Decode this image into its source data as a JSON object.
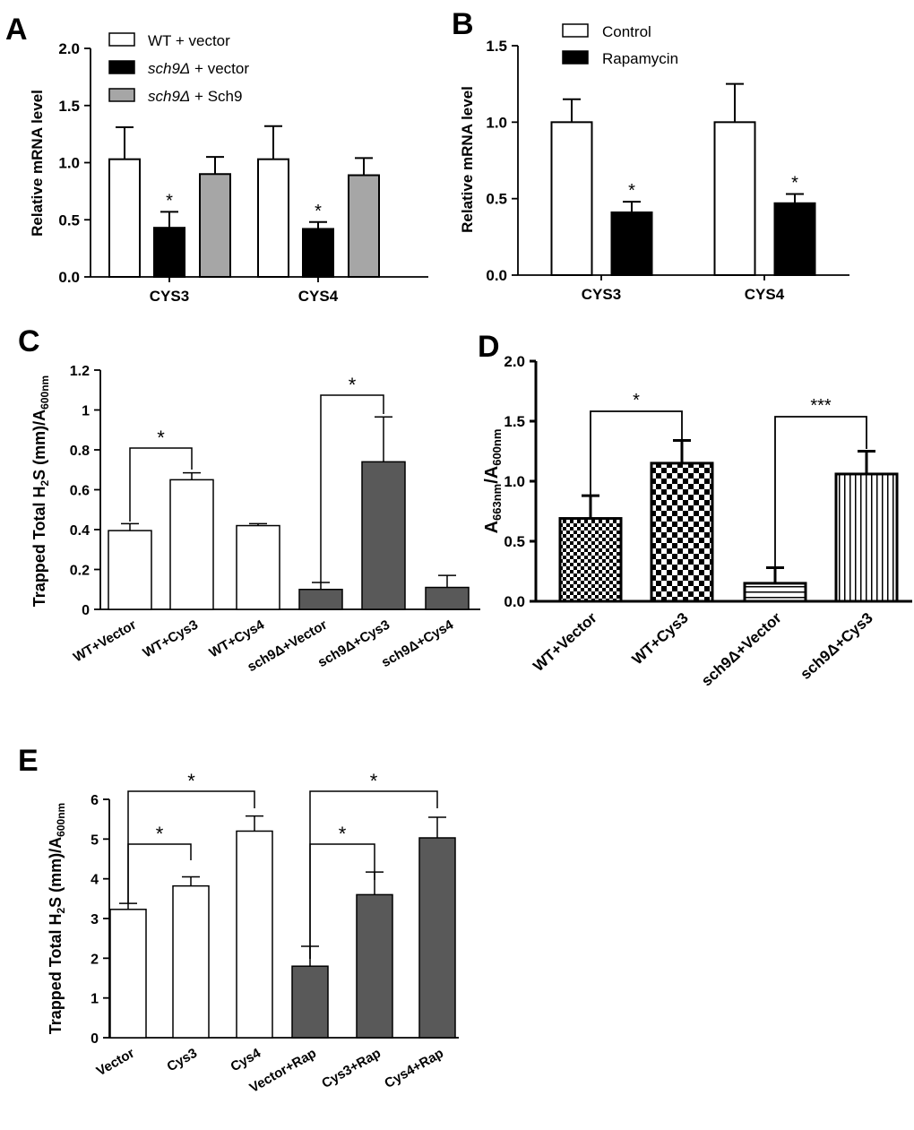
{
  "chart_data": [
    {
      "panel": "A",
      "type": "bar",
      "ylabel": "Relative mRNA level",
      "ylim": [
        0,
        2.0
      ],
      "yticks": [
        "0.0",
        "0.5",
        "1.0",
        "1.5",
        "2.0"
      ],
      "categories": [
        "CYS3",
        "CYS4"
      ],
      "series": [
        {
          "name": "WT + vector",
          "legend": {
            "prefix": "WT + vector",
            "italic": ""
          },
          "style": "white",
          "values": [
            1.03,
            1.03
          ],
          "errors": [
            0.28,
            0.29
          ]
        },
        {
          "name": "sch9Δ + vector",
          "legend": {
            "italic": "sch9Δ",
            "suffix": " + vector"
          },
          "style": "black",
          "values": [
            0.43,
            0.42
          ],
          "errors": [
            0.14,
            0.06
          ]
        },
        {
          "name": "sch9Δ + Sch9",
          "legend": {
            "italic": "sch9Δ",
            "suffix": " + Sch9"
          },
          "style": "gray",
          "values": [
            0.9,
            0.89
          ],
          "errors": [
            0.15,
            0.15
          ]
        }
      ],
      "stars": [
        {
          "category": 0,
          "series": 1,
          "text": "*"
        },
        {
          "category": 1,
          "series": 1,
          "text": "*"
        }
      ]
    },
    {
      "panel": "B",
      "type": "bar",
      "ylabel": "Relative mRNA level",
      "ylim": [
        0,
        1.5
      ],
      "yticks": [
        "0.0",
        "0.5",
        "1.0",
        "1.5"
      ],
      "categories": [
        "CYS3",
        "CYS4"
      ],
      "series": [
        {
          "name": "Control",
          "style": "white",
          "values": [
            1.0,
            1.0
          ],
          "errors": [
            0.15,
            0.25
          ]
        },
        {
          "name": "Rapamycin",
          "style": "black",
          "values": [
            0.41,
            0.47
          ],
          "errors": [
            0.07,
            0.06
          ]
        }
      ],
      "stars": [
        {
          "category": 0,
          "series": 1,
          "text": "*"
        },
        {
          "category": 1,
          "series": 1,
          "text": "*"
        }
      ]
    },
    {
      "panel": "C",
      "type": "bar",
      "ylabel_main": "Trapped Total H",
      "ylabel_sub1": "2",
      "ylabel_mid": "S (mm)/A",
      "ylabel_sub2": "600nm",
      "ylim": [
        0,
        1.2
      ],
      "yticks": [
        "0",
        "0.2",
        "0.4",
        "0.6",
        "0.8",
        "1",
        "1.2"
      ],
      "categories": [
        "WT+Vector",
        "WT+Cys3",
        "WT+Cys4",
        "sch9Δ+Vector",
        "sch9Δ+Cys3",
        "sch9Δ+Cys4"
      ],
      "values": [
        0.395,
        0.65,
        0.42,
        0.1,
        0.74,
        0.11
      ],
      "errors": [
        0.035,
        0.035,
        0.01,
        0.035,
        0.225,
        0.06
      ],
      "styles": [
        "white",
        "white",
        "white",
        "dark",
        "dark",
        "dark"
      ],
      "brackets": [
        {
          "from": 0,
          "to": 1,
          "text": "*"
        },
        {
          "from": 3,
          "to": 4,
          "text": "*"
        }
      ]
    },
    {
      "panel": "D",
      "type": "bar",
      "ylabel_a": "A",
      "ylabel_sub1": "663nm",
      "ylabel_slash": "/A",
      "ylabel_sub2": "600nm",
      "ylim": [
        0,
        2.0
      ],
      "yticks": [
        "0.0",
        "0.5",
        "1.0",
        "1.5",
        "2.0"
      ],
      "categories": [
        "WT+Vector",
        "WT+Cys3",
        "sch9Δ+Vector",
        "sch9Δ+Cys3"
      ],
      "values": [
        0.69,
        1.15,
        0.15,
        1.06
      ],
      "errors": [
        0.19,
        0.19,
        0.13,
        0.19
      ],
      "patterns": [
        "check-small",
        "check-large",
        "horizontal",
        "vertical"
      ],
      "brackets": [
        {
          "from": 0,
          "to": 1,
          "text": "*"
        },
        {
          "from": 2,
          "to": 3,
          "text": "***"
        }
      ]
    },
    {
      "panel": "E",
      "type": "bar",
      "ylabel_main": "Trapped Total H",
      "ylabel_sub1": "2",
      "ylabel_mid": "S (mm)/A",
      "ylabel_sub2": "600nm",
      "ylim": [
        0,
        6
      ],
      "yticks": [
        "0",
        "1",
        "2",
        "3",
        "4",
        "5",
        "6"
      ],
      "categories": [
        "Vector",
        "Cys3",
        "Cys4",
        "Vector+Rap",
        "Cys3+Rap",
        "Cys4+Rap"
      ],
      "values": [
        3.23,
        3.82,
        5.2,
        1.8,
        3.6,
        5.03
      ],
      "errors": [
        0.15,
        0.23,
        0.38,
        0.5,
        0.57,
        0.52
      ],
      "styles": [
        "white",
        "white",
        "white",
        "dark",
        "dark",
        "dark"
      ],
      "brackets": [
        {
          "from": 0,
          "to": 1,
          "text": "*"
        },
        {
          "from": 0,
          "to": 2,
          "text": "*"
        },
        {
          "from": 3,
          "to": 4,
          "text": "*"
        },
        {
          "from": 3,
          "to": 5,
          "text": "*"
        }
      ]
    }
  ]
}
